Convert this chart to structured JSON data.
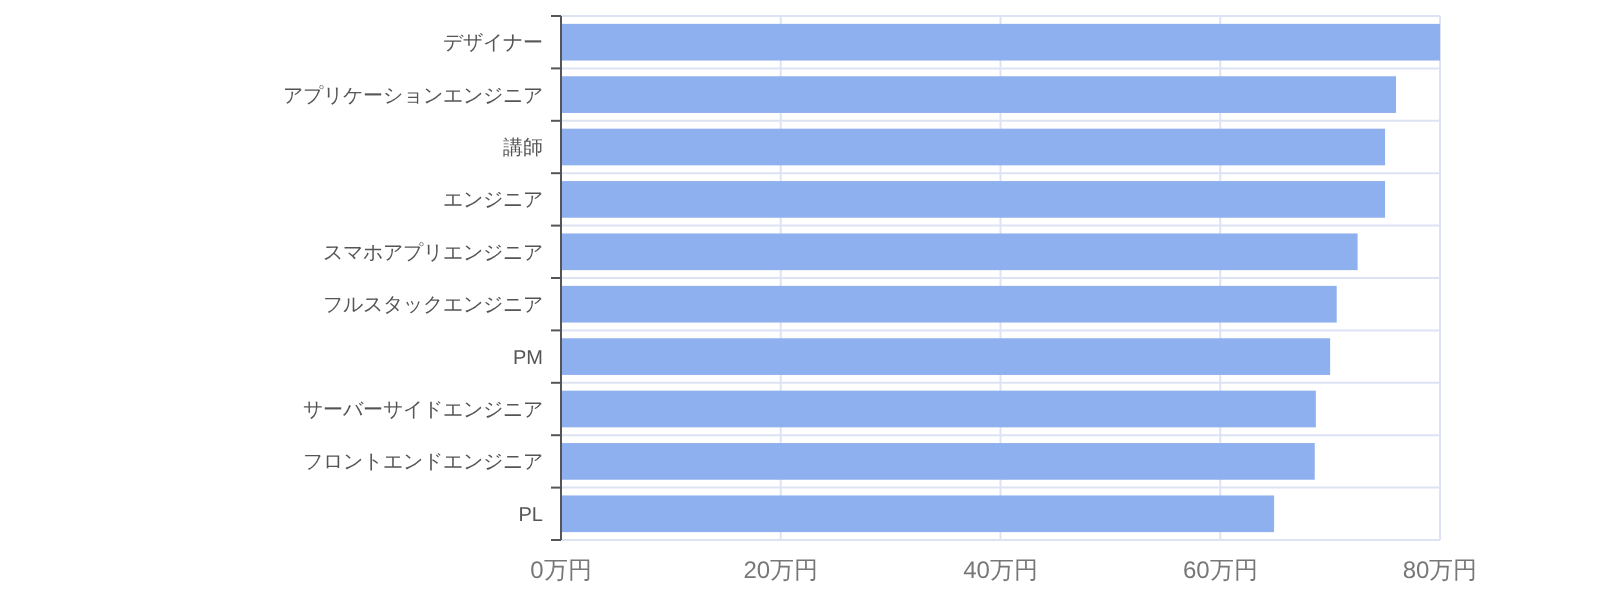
{
  "chart_data": {
    "type": "bar",
    "orientation": "horizontal",
    "categories": [
      "デザイナー",
      "アプリケーションエンジニア",
      "講師",
      "エンジニア",
      "スマホアプリエンジニア",
      "フルスタックエンジニア",
      "PM",
      "サーバーサイドエンジニア",
      "フロントエンドエンジニア",
      "PL"
    ],
    "values": [
      80,
      76,
      75,
      75,
      72.5,
      70.6,
      70,
      68.7,
      68.6,
      64.9
    ],
    "color": "#8fb0ee",
    "xlim": [
      0,
      80
    ],
    "xticks": [
      {
        "value": 0,
        "label": "0万円"
      },
      {
        "value": 20,
        "label": "20万円"
      },
      {
        "value": 40,
        "label": "40万円"
      },
      {
        "value": 60,
        "label": "60万円"
      },
      {
        "value": 80,
        "label": "80万円"
      }
    ],
    "grid": true
  }
}
